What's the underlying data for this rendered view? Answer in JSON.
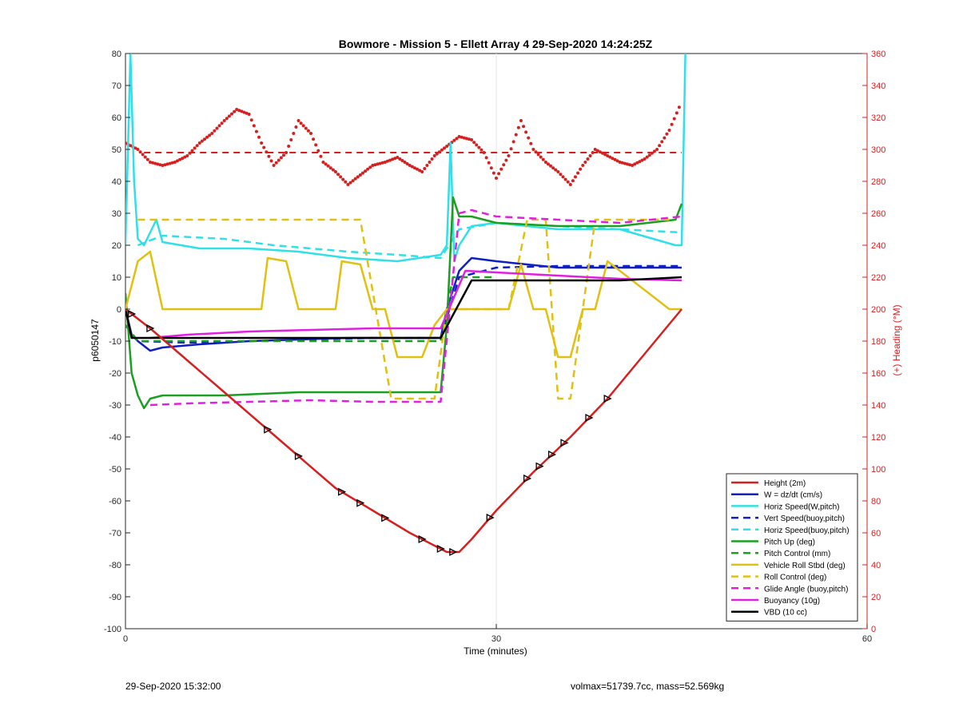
{
  "footer": {
    "left": "29-Sep-2020 15:32:00",
    "right": "volmax=51739.7cc, mass=52.569kg"
  },
  "chart_data": {
    "type": "line",
    "title": "Bowmore - Mission 5 - Ellett Array 4 29-Sep-2020 14:24:25Z",
    "xlabel": "Time (minutes)",
    "ylabel": "p6050147",
    "y2label": "(+) Heading (°M)",
    "xlim": [
      0,
      60
    ],
    "ylim": [
      -100,
      80
    ],
    "y2lim": [
      0,
      360
    ],
    "xticks": [
      0,
      30,
      60
    ],
    "yticks": [
      -100,
      -90,
      -80,
      -70,
      -60,
      -50,
      -40,
      -30,
      -20,
      -10,
      0,
      10,
      20,
      30,
      40,
      50,
      60,
      70,
      80
    ],
    "y2ticks": [
      0,
      20,
      40,
      60,
      80,
      100,
      120,
      140,
      160,
      180,
      200,
      220,
      240,
      260,
      280,
      300,
      320,
      340,
      360
    ],
    "grid": "x-major only",
    "legend_position": "bottom-right",
    "series": [
      {
        "name": "Height (2m)",
        "color": "#d62020",
        "style": "solid",
        "x": [
          0,
          2,
          5,
          8,
          11,
          14,
          17,
          20,
          23,
          25,
          26,
          27,
          28,
          30,
          33,
          36,
          39,
          42,
          45
        ],
        "y": [
          0,
          -6,
          -16,
          -26,
          -36,
          -46,
          -56,
          -63,
          -70,
          -74,
          -76,
          -76,
          -72,
          -63,
          -51,
          -40,
          -28,
          -14,
          0
        ]
      },
      {
        "name": "W = dz/dt (cm/s)",
        "color": "#1020c0",
        "style": "solid",
        "x": [
          0,
          0.5,
          1,
          2,
          3,
          6,
          10,
          14,
          18,
          22,
          25.5,
          26,
          27,
          28,
          30,
          35,
          40,
          45
        ],
        "y": [
          0,
          -8,
          -10,
          -13,
          -12,
          -11,
          -10,
          -9.5,
          -9,
          -9,
          -9,
          0,
          12,
          16,
          15,
          13,
          13,
          13
        ]
      },
      {
        "name": "Horiz Speed(W,pitch)",
        "color": "#30e0e8",
        "style": "solid",
        "x": [
          0,
          0.4,
          0.7,
          1,
          1.5,
          2,
          2.5,
          3,
          6,
          10,
          14,
          18,
          22,
          25.5,
          26,
          26.3,
          26.6,
          27,
          28,
          30,
          35,
          40,
          44.5,
          45,
          45.3
        ],
        "y": [
          20,
          80,
          40,
          22,
          20,
          24,
          28,
          21,
          19,
          19,
          18,
          16,
          15,
          17,
          20,
          52,
          15,
          20,
          26,
          27,
          25,
          25,
          20,
          20,
          80
        ]
      },
      {
        "name": "Vert Speed(buoy,pitch)",
        "color": "#1020c0",
        "style": "dashed",
        "x": [
          0,
          1,
          5,
          10,
          15,
          20,
          25.5,
          27,
          30,
          35,
          40,
          45
        ],
        "y": [
          -5,
          -10,
          -10.5,
          -10,
          -9.5,
          -9,
          -9,
          10,
          13,
          13.5,
          13.5,
          13.5
        ]
      },
      {
        "name": "Horiz Speed(buoy,pitch)",
        "color": "#30e0e8",
        "style": "dashed",
        "x": [
          1,
          3,
          8,
          12,
          18,
          22,
          25.5,
          27,
          30,
          35,
          40,
          45
        ],
        "y": [
          20,
          23,
          22,
          20,
          18,
          17,
          16,
          25,
          27,
          26,
          25,
          24
        ]
      },
      {
        "name": "Pitch Up (deg)",
        "color": "#1aa020",
        "style": "solid",
        "x": [
          0,
          0.5,
          1,
          1.5,
          2,
          3,
          8,
          14,
          20,
          25.5,
          26,
          26.5,
          27,
          28,
          30,
          35,
          40,
          44.5,
          45
        ],
        "y": [
          5,
          -20,
          -27,
          -31,
          -28,
          -27,
          -27,
          -26,
          -26,
          -26,
          -5,
          35,
          29,
          29,
          27,
          26,
          26,
          28,
          33
        ]
      },
      {
        "name": "Pitch Control (mm)",
        "color": "#1aa020",
        "style": "dashed",
        "x": [
          0,
          1,
          10,
          20,
          25.5,
          26.5,
          27.5,
          30
        ],
        "y": [
          -5,
          -10,
          -10,
          -10,
          -10,
          10,
          10,
          10
        ]
      },
      {
        "name": "Vehicle Roll Stbd (deg)",
        "color": "#e0c010",
        "style": "solid",
        "x": [
          0,
          1,
          2,
          3,
          11,
          11.5,
          13,
          14,
          17,
          17.5,
          19,
          20,
          21,
          22,
          24,
          25,
          26,
          27,
          31,
          32,
          33,
          34,
          35,
          36,
          37,
          38,
          39,
          44,
          45
        ],
        "y": [
          0,
          15,
          18,
          0,
          0,
          16,
          15,
          0,
          0,
          15,
          14,
          0,
          0,
          -15,
          -15,
          -5,
          0,
          0,
          0,
          14,
          0,
          0,
          -15,
          -15,
          0,
          0,
          15,
          0,
          0
        ]
      },
      {
        "name": "Roll Control (deg)",
        "color": "#e0c010",
        "style": "dashed",
        "x": [
          1,
          2,
          11.5,
          13.5,
          17.5,
          19,
          21.5,
          24,
          25,
          26,
          27,
          31,
          32.5,
          34,
          35,
          36,
          38,
          38.5,
          44
        ],
        "y": [
          28,
          28,
          28,
          28,
          28,
          28,
          -28,
          -28,
          -28,
          0,
          0,
          0,
          28,
          28,
          -28,
          -28,
          28,
          28,
          28
        ]
      },
      {
        "name": "Glide Angle (buoy,pitch)",
        "color": "#e020e0",
        "style": "dashed",
        "x": [
          2,
          5,
          10,
          15,
          20,
          25.5,
          27,
          28,
          30,
          35,
          40,
          45
        ],
        "y": [
          -30,
          -29.5,
          -29,
          -28.5,
          -29,
          -29,
          30,
          31,
          29,
          28,
          27,
          29
        ]
      },
      {
        "name": "Buoyancy (10g)",
        "color": "#e020e0",
        "style": "solid",
        "x": [
          2,
          5,
          10,
          15,
          20,
          25.5,
          27.5,
          30,
          35,
          40,
          45
        ],
        "y": [
          -9,
          -8,
          -7,
          -6.5,
          -6,
          -6,
          12,
          11.5,
          10.5,
          9.5,
          9
        ]
      },
      {
        "name": "VBD (10 cc)",
        "color": "#000000",
        "style": "solid",
        "x": [
          0,
          0.5,
          1,
          20,
          25.5,
          28,
          30,
          35,
          40,
          45
        ],
        "y": [
          0,
          -9,
          -9,
          -9,
          -9,
          9,
          9,
          9,
          9,
          10
        ]
      }
    ],
    "heading": {
      "name": "Heading (deg M)",
      "color": "#d62020",
      "mean": 298,
      "x": [
        0,
        1,
        2,
        3,
        4,
        5,
        6,
        7,
        8,
        9,
        10,
        11,
        12,
        13,
        14,
        15,
        16,
        17,
        18,
        19,
        20,
        21,
        22,
        23,
        24,
        25,
        26,
        27,
        28,
        29,
        30,
        31,
        32,
        33,
        34,
        35,
        36,
        37,
        38,
        39,
        40,
        41,
        42,
        43,
        44,
        45
      ],
      "y": [
        304,
        300,
        292,
        290,
        292,
        296,
        304,
        310,
        318,
        325,
        322,
        304,
        290,
        298,
        318,
        310,
        292,
        286,
        278,
        284,
        290,
        292,
        295,
        290,
        286,
        296,
        302,
        308,
        306,
        298,
        282,
        296,
        318,
        300,
        292,
        286,
        278,
        290,
        300,
        296,
        292,
        290,
        294,
        300,
        312,
        330
      ]
    }
  }
}
